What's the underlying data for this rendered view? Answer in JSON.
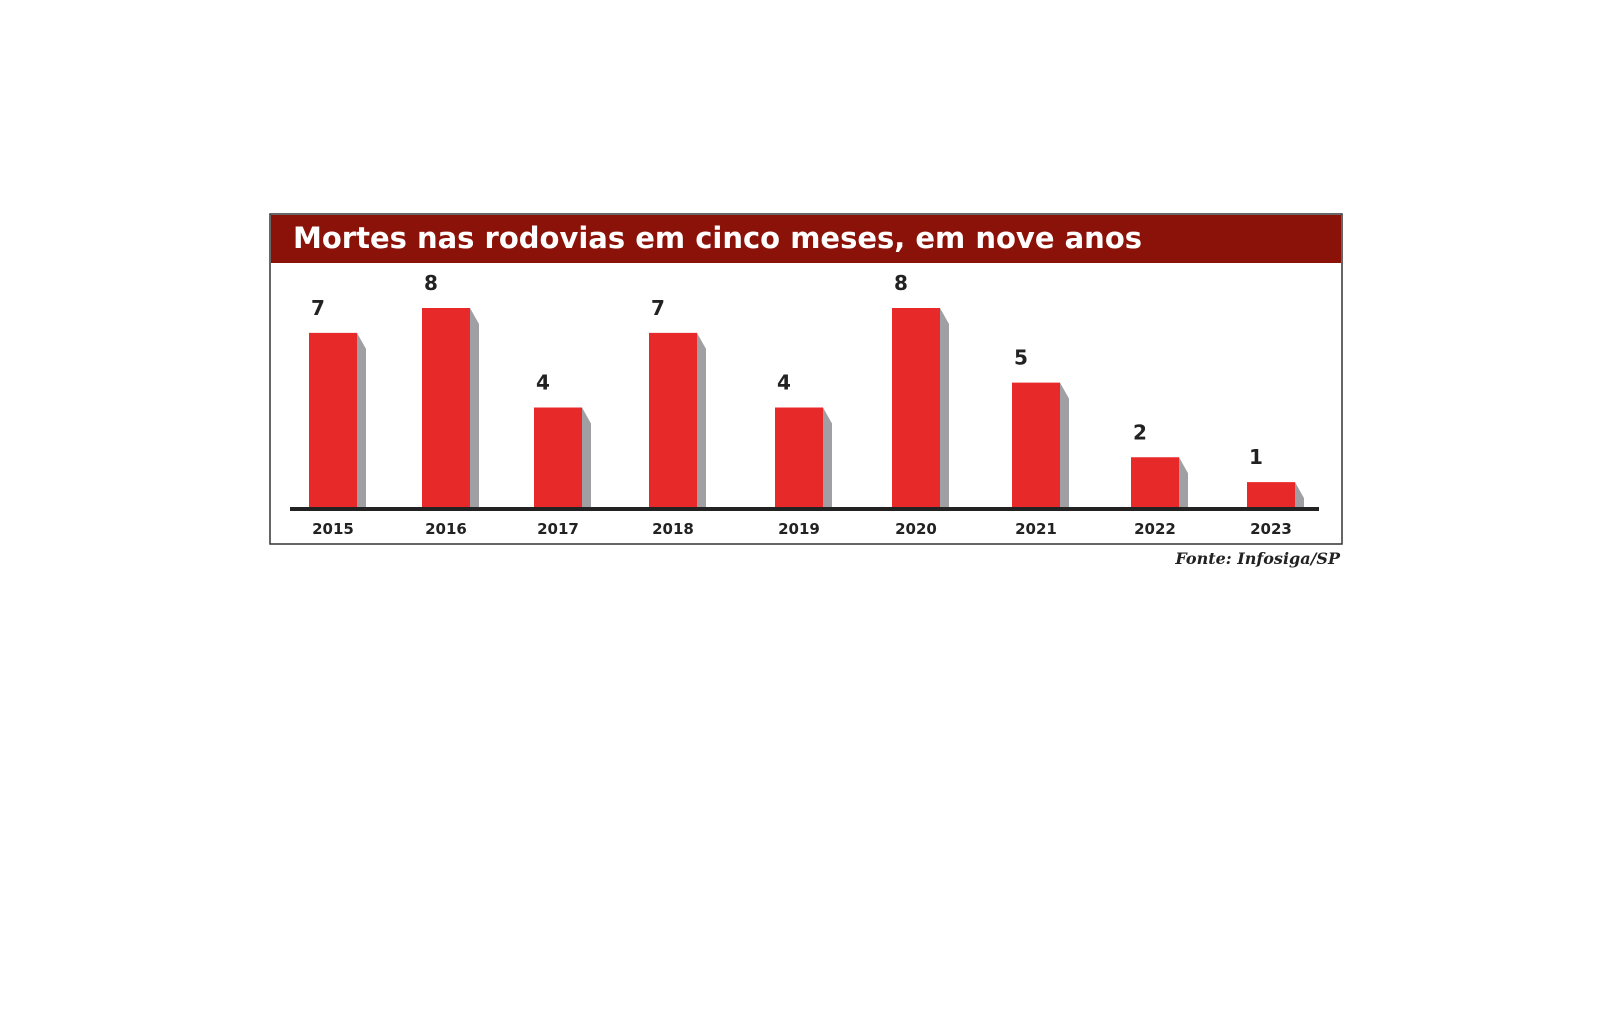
{
  "chart_data": {
    "type": "bar",
    "title": "Mortes nas rodovias em cinco meses, em nove anos",
    "categories": [
      "2015",
      "2016",
      "2017",
      "2018",
      "2019",
      "2020",
      "2021",
      "2022",
      "2023"
    ],
    "values": [
      7,
      8,
      4,
      7,
      4,
      8,
      5,
      2,
      1
    ],
    "color": "#e8292a",
    "source": "Fonte: Infosiga/SP"
  }
}
